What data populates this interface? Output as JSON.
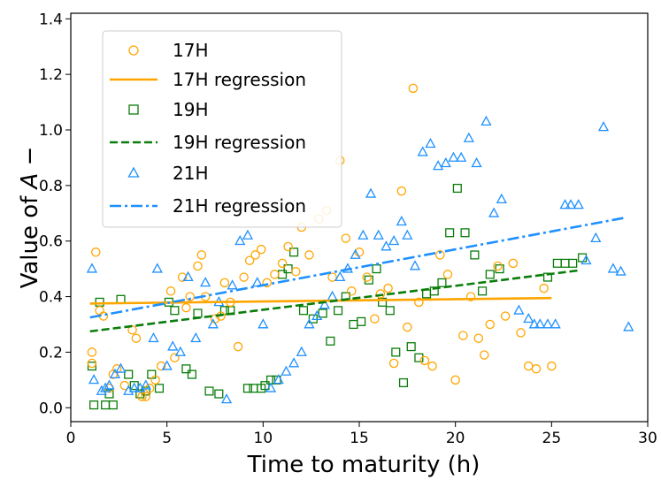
{
  "chart_data": {
    "type": "scatter",
    "xlabel": "Time to maturity (h)",
    "ylabel_prefix": "Value of ",
    "ylabel_var": "A",
    "ylabel_suffix": " −",
    "xlim": [
      0,
      30
    ],
    "ylim": [
      -0.05,
      1.42
    ],
    "xticks": [
      0,
      5,
      10,
      15,
      20,
      25,
      30
    ],
    "yticks": [
      0.0,
      0.2,
      0.4,
      0.6,
      0.8,
      1.0,
      1.2,
      1.4
    ],
    "xtick_labels": [
      "0",
      "5",
      "10",
      "15",
      "20",
      "25",
      "30"
    ],
    "ytick_labels": [
      "0.0",
      "0.2",
      "0.4",
      "0.6",
      "0.8",
      "1.0",
      "1.2",
      "1.4"
    ],
    "legend_location": "top-left",
    "series": [
      {
        "name": "17H",
        "marker": "circle",
        "color": "#FFA500",
        "regression_label": "17H regression",
        "regression_style": "solid",
        "regression": {
          "x": [
            1,
            25
          ],
          "y": [
            0.375,
            0.395
          ]
        },
        "points": [
          [
            1.1,
            0.2
          ],
          [
            1.1,
            0.16
          ],
          [
            1.3,
            0.56
          ],
          [
            1.5,
            0.35
          ],
          [
            1.7,
            0.33
          ],
          [
            2.0,
            0.07
          ],
          [
            2.2,
            0.12
          ],
          [
            2.4,
            0.14
          ],
          [
            2.8,
            0.08
          ],
          [
            3.2,
            0.28
          ],
          [
            3.4,
            0.25
          ],
          [
            3.7,
            0.04
          ],
          [
            3.9,
            0.04
          ],
          [
            4.1,
            0.07
          ],
          [
            4.4,
            0.1
          ],
          [
            4.7,
            0.15
          ],
          [
            5.2,
            0.42
          ],
          [
            5.4,
            0.18
          ],
          [
            5.8,
            0.47
          ],
          [
            6.0,
            0.36
          ],
          [
            6.2,
            0.4
          ],
          [
            6.6,
            0.51
          ],
          [
            6.8,
            0.55
          ],
          [
            7.0,
            0.4
          ],
          [
            7.5,
            0.32
          ],
          [
            7.8,
            0.33
          ],
          [
            8.0,
            0.45
          ],
          [
            8.3,
            0.38
          ],
          [
            8.7,
            0.22
          ],
          [
            9.0,
            0.47
          ],
          [
            9.3,
            0.53
          ],
          [
            9.6,
            0.55
          ],
          [
            9.9,
            0.57
          ],
          [
            10.2,
            0.45
          ],
          [
            10.6,
            0.48
          ],
          [
            11.0,
            0.52
          ],
          [
            11.3,
            0.58
          ],
          [
            11.7,
            0.49
          ],
          [
            12.0,
            0.65
          ],
          [
            12.4,
            0.55
          ],
          [
            12.9,
            0.68
          ],
          [
            13.3,
            0.71
          ],
          [
            13.6,
            0.47
          ],
          [
            14.0,
            0.89
          ],
          [
            14.3,
            0.61
          ],
          [
            14.6,
            0.42
          ],
          [
            15.0,
            0.56
          ],
          [
            15.4,
            0.47
          ],
          [
            15.8,
            0.32
          ],
          [
            16.1,
            0.41
          ],
          [
            16.5,
            0.43
          ],
          [
            16.8,
            0.16
          ],
          [
            17.2,
            0.78
          ],
          [
            17.5,
            0.29
          ],
          [
            17.8,
            1.15
          ],
          [
            18.1,
            0.38
          ],
          [
            18.4,
            0.17
          ],
          [
            18.8,
            0.15
          ],
          [
            19.2,
            0.55
          ],
          [
            19.6,
            0.48
          ],
          [
            20.0,
            0.1
          ],
          [
            20.4,
            0.26
          ],
          [
            20.8,
            0.4
          ],
          [
            21.2,
            0.25
          ],
          [
            21.5,
            0.19
          ],
          [
            21.8,
            0.3
          ],
          [
            22.2,
            0.51
          ],
          [
            22.6,
            0.33
          ],
          [
            23.0,
            0.52
          ],
          [
            23.4,
            0.27
          ],
          [
            23.8,
            0.15
          ],
          [
            24.2,
            0.14
          ],
          [
            24.6,
            0.43
          ],
          [
            25.0,
            0.15
          ]
        ]
      },
      {
        "name": "19H",
        "marker": "square",
        "color": "#0A7D0A",
        "regression_label": "19H regression",
        "regression_style": "dashed",
        "regression": {
          "x": [
            1,
            26.5
          ],
          "y": [
            0.275,
            0.495
          ]
        },
        "points": [
          [
            1.1,
            0.15
          ],
          [
            1.2,
            0.01
          ],
          [
            1.5,
            0.38
          ],
          [
            1.8,
            0.01
          ],
          [
            2.0,
            0.05
          ],
          [
            2.2,
            0.01
          ],
          [
            2.6,
            0.39
          ],
          [
            3.0,
            0.12
          ],
          [
            3.3,
            0.08
          ],
          [
            3.6,
            0.05
          ],
          [
            3.9,
            0.06
          ],
          [
            4.2,
            0.12
          ],
          [
            4.6,
            0.07
          ],
          [
            5.1,
            0.38
          ],
          [
            5.4,
            0.35
          ],
          [
            6.0,
            0.14
          ],
          [
            6.3,
            0.12
          ],
          [
            6.6,
            0.34
          ],
          [
            7.2,
            0.06
          ],
          [
            7.7,
            0.05
          ],
          [
            8.0,
            0.35
          ],
          [
            8.3,
            0.35
          ],
          [
            9.2,
            0.07
          ],
          [
            9.5,
            0.07
          ],
          [
            9.9,
            0.07
          ],
          [
            10.1,
            0.08
          ],
          [
            10.4,
            0.1
          ],
          [
            10.7,
            0.1
          ],
          [
            11.0,
            0.48
          ],
          [
            11.3,
            0.5
          ],
          [
            11.6,
            0.56
          ],
          [
            12.1,
            0.35
          ],
          [
            12.6,
            0.32
          ],
          [
            13.1,
            0.34
          ],
          [
            13.5,
            0.24
          ],
          [
            13.9,
            0.35
          ],
          [
            14.3,
            0.4
          ],
          [
            14.7,
            0.3
          ],
          [
            15.1,
            0.31
          ],
          [
            15.5,
            0.46
          ],
          [
            15.9,
            0.5
          ],
          [
            16.2,
            0.38
          ],
          [
            16.6,
            0.35
          ],
          [
            16.9,
            0.2
          ],
          [
            17.3,
            0.09
          ],
          [
            17.7,
            0.22
          ],
          [
            18.1,
            0.18
          ],
          [
            18.5,
            0.41
          ],
          [
            18.9,
            0.42
          ],
          [
            19.3,
            0.45
          ],
          [
            19.7,
            0.63
          ],
          [
            20.1,
            0.79
          ],
          [
            20.5,
            0.63
          ],
          [
            21.0,
            0.55
          ],
          [
            21.4,
            0.42
          ],
          [
            21.8,
            0.48
          ],
          [
            22.3,
            0.5
          ],
          [
            24.8,
            0.47
          ],
          [
            25.3,
            0.52
          ],
          [
            25.7,
            0.52
          ],
          [
            26.1,
            0.52
          ],
          [
            26.6,
            0.54
          ]
        ]
      },
      {
        "name": "21H",
        "marker": "triangle",
        "color": "#1E90FF",
        "regression_label": "21H regression",
        "regression_style": "dashdot",
        "regression": {
          "x": [
            1,
            28.9
          ],
          "y": [
            0.325,
            0.685
          ]
        },
        "points": [
          [
            1.1,
            0.5
          ],
          [
            1.2,
            0.1
          ],
          [
            1.6,
            0.06
          ],
          [
            1.8,
            0.07
          ],
          [
            2.0,
            0.08
          ],
          [
            2.3,
            0.12
          ],
          [
            2.6,
            0.14
          ],
          [
            3.0,
            0.06
          ],
          [
            3.3,
            0.07
          ],
          [
            3.6,
            0.07
          ],
          [
            3.9,
            0.08
          ],
          [
            4.3,
            0.25
          ],
          [
            4.5,
            0.5
          ],
          [
            5.0,
            0.15
          ],
          [
            5.3,
            0.22
          ],
          [
            5.7,
            0.2
          ],
          [
            6.1,
            0.47
          ],
          [
            6.5,
            0.25
          ],
          [
            7.0,
            0.45
          ],
          [
            7.4,
            0.3
          ],
          [
            7.7,
            0.38
          ],
          [
            8.1,
            0.03
          ],
          [
            8.4,
            0.44
          ],
          [
            8.8,
            0.6
          ],
          [
            9.2,
            0.62
          ],
          [
            9.7,
            0.45
          ],
          [
            10.0,
            0.3
          ],
          [
            10.4,
            0.07
          ],
          [
            10.8,
            0.1
          ],
          [
            11.2,
            0.13
          ],
          [
            11.6,
            0.16
          ],
          [
            12.0,
            0.2
          ],
          [
            12.4,
            0.3
          ],
          [
            12.8,
            0.33
          ],
          [
            13.2,
            0.37
          ],
          [
            13.6,
            0.4
          ],
          [
            14.0,
            0.47
          ],
          [
            14.4,
            0.5
          ],
          [
            14.8,
            0.55
          ],
          [
            15.2,
            0.62
          ],
          [
            15.6,
            0.77
          ],
          [
            16.0,
            0.62
          ],
          [
            16.4,
            0.58
          ],
          [
            16.8,
            0.6
          ],
          [
            17.2,
            0.67
          ],
          [
            17.5,
            0.62
          ],
          [
            17.9,
            0.51
          ],
          [
            18.3,
            0.92
          ],
          [
            18.7,
            0.95
          ],
          [
            19.1,
            0.87
          ],
          [
            19.5,
            0.88
          ],
          [
            19.9,
            0.9
          ],
          [
            20.3,
            0.9
          ],
          [
            20.7,
            0.97
          ],
          [
            21.1,
            0.88
          ],
          [
            21.6,
            1.03
          ],
          [
            22.0,
            0.7
          ],
          [
            22.4,
            0.75
          ],
          [
            23.3,
            0.35
          ],
          [
            23.8,
            0.32
          ],
          [
            24.1,
            0.3
          ],
          [
            24.4,
            0.3
          ],
          [
            24.8,
            0.3
          ],
          [
            25.2,
            0.3
          ],
          [
            25.7,
            0.73
          ],
          [
            26.0,
            0.73
          ],
          [
            26.4,
            0.73
          ],
          [
            26.8,
            0.53
          ],
          [
            27.3,
            0.61
          ],
          [
            27.7,
            1.01
          ],
          [
            28.2,
            0.5
          ],
          [
            28.6,
            0.49
          ],
          [
            29.0,
            0.29
          ]
        ]
      }
    ]
  }
}
